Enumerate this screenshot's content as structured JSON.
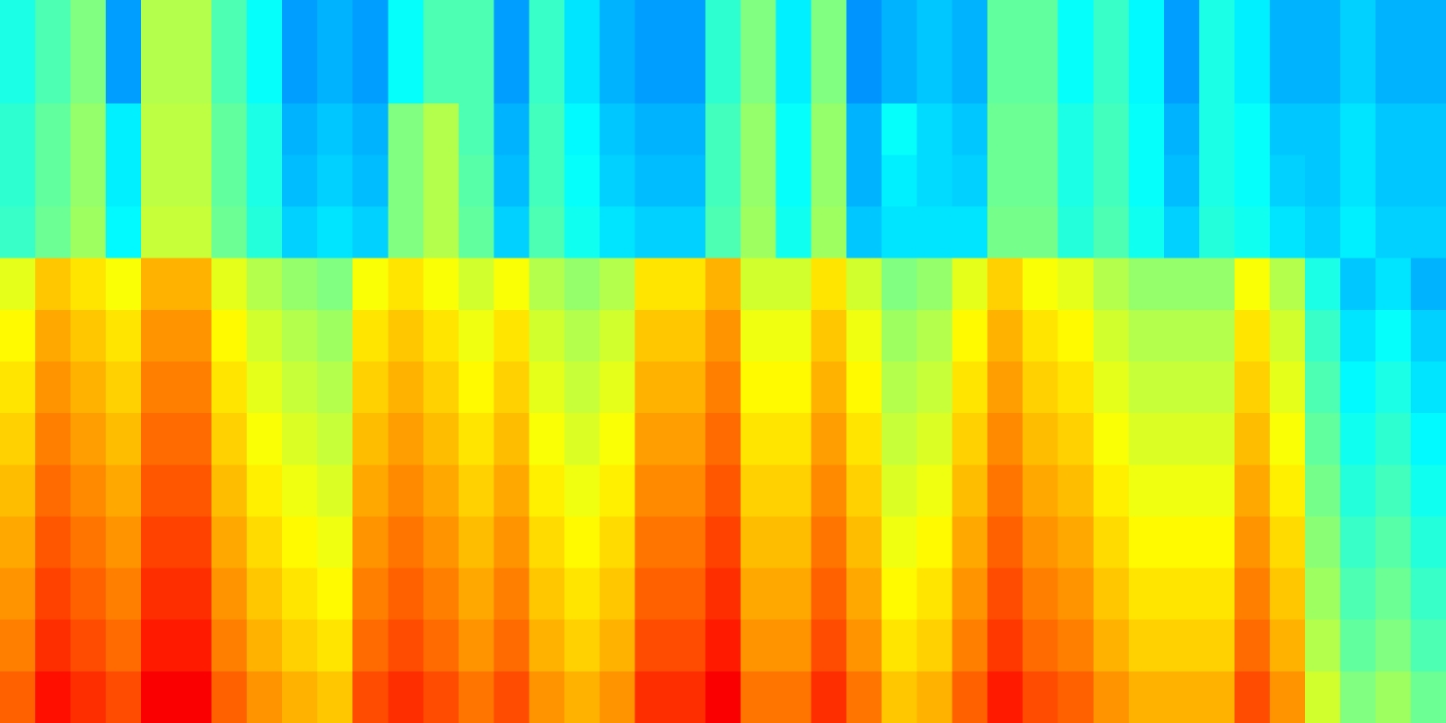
{
  "chart_data": {
    "type": "heatmap",
    "colormap": "jet",
    "clim": [
      0,
      1
    ],
    "values": [
      [
        0.4,
        0.45,
        0.5,
        0.28,
        0.55,
        0.55,
        0.45,
        0.38,
        0.28,
        0.3,
        0.28,
        0.38,
        0.45,
        0.45,
        0.28,
        0.43,
        0.35,
        0.3,
        0.28,
        0.28,
        0.42,
        0.5,
        0.36,
        0.5,
        0.27,
        0.3,
        0.32,
        0.3,
        0.47,
        0.47,
        0.38,
        0.43,
        0.37,
        0.28,
        0.4,
        0.36,
        0.3,
        0.3,
        0.33,
        0.3,
        0.3
      ],
      [
        0.4,
        0.45,
        0.5,
        0.28,
        0.55,
        0.55,
        0.45,
        0.38,
        0.28,
        0.3,
        0.28,
        0.38,
        0.45,
        0.45,
        0.28,
        0.43,
        0.35,
        0.3,
        0.28,
        0.28,
        0.42,
        0.5,
        0.36,
        0.5,
        0.27,
        0.3,
        0.32,
        0.3,
        0.47,
        0.47,
        0.38,
        0.43,
        0.37,
        0.28,
        0.4,
        0.36,
        0.3,
        0.3,
        0.33,
        0.3,
        0.3
      ],
      [
        0.42,
        0.47,
        0.52,
        0.36,
        0.56,
        0.56,
        0.47,
        0.4,
        0.3,
        0.32,
        0.3,
        0.5,
        0.55,
        0.45,
        0.3,
        0.44,
        0.37,
        0.32,
        0.3,
        0.3,
        0.44,
        0.52,
        0.38,
        0.52,
        0.3,
        0.38,
        0.34,
        0.32,
        0.48,
        0.48,
        0.4,
        0.44,
        0.38,
        0.3,
        0.4,
        0.38,
        0.32,
        0.32,
        0.35,
        0.32,
        0.32
      ],
      [
        0.42,
        0.47,
        0.52,
        0.36,
        0.56,
        0.56,
        0.47,
        0.4,
        0.31,
        0.33,
        0.31,
        0.5,
        0.55,
        0.46,
        0.31,
        0.44,
        0.38,
        0.33,
        0.31,
        0.31,
        0.44,
        0.52,
        0.38,
        0.52,
        0.3,
        0.36,
        0.34,
        0.33,
        0.48,
        0.48,
        0.4,
        0.44,
        0.38,
        0.31,
        0.4,
        0.38,
        0.33,
        0.32,
        0.35,
        0.32,
        0.32
      ],
      [
        0.43,
        0.48,
        0.53,
        0.37,
        0.57,
        0.57,
        0.48,
        0.41,
        0.33,
        0.35,
        0.33,
        0.5,
        0.55,
        0.47,
        0.33,
        0.45,
        0.39,
        0.35,
        0.33,
        0.33,
        0.45,
        0.53,
        0.39,
        0.53,
        0.32,
        0.35,
        0.35,
        0.35,
        0.49,
        0.49,
        0.41,
        0.45,
        0.39,
        0.33,
        0.41,
        0.39,
        0.35,
        0.33,
        0.36,
        0.33,
        0.33
      ],
      [
        0.6,
        0.68,
        0.65,
        0.62,
        0.7,
        0.7,
        0.6,
        0.55,
        0.52,
        0.5,
        0.62,
        0.65,
        0.62,
        0.58,
        0.62,
        0.55,
        0.52,
        0.55,
        0.65,
        0.65,
        0.7,
        0.58,
        0.58,
        0.65,
        0.58,
        0.5,
        0.52,
        0.6,
        0.67,
        0.62,
        0.6,
        0.55,
        0.52,
        0.52,
        0.52,
        0.62,
        0.55,
        0.4,
        0.32,
        0.35,
        0.3
      ],
      [
        0.63,
        0.71,
        0.68,
        0.65,
        0.73,
        0.73,
        0.63,
        0.58,
        0.55,
        0.53,
        0.65,
        0.68,
        0.65,
        0.61,
        0.65,
        0.58,
        0.55,
        0.58,
        0.68,
        0.68,
        0.73,
        0.61,
        0.61,
        0.68,
        0.61,
        0.53,
        0.55,
        0.63,
        0.7,
        0.65,
        0.63,
        0.58,
        0.55,
        0.55,
        0.55,
        0.65,
        0.58,
        0.43,
        0.35,
        0.38,
        0.33
      ],
      [
        0.65,
        0.73,
        0.7,
        0.67,
        0.75,
        0.75,
        0.65,
        0.6,
        0.57,
        0.55,
        0.67,
        0.7,
        0.67,
        0.63,
        0.67,
        0.6,
        0.57,
        0.6,
        0.7,
        0.7,
        0.75,
        0.63,
        0.63,
        0.7,
        0.63,
        0.55,
        0.57,
        0.65,
        0.72,
        0.67,
        0.65,
        0.6,
        0.57,
        0.57,
        0.57,
        0.67,
        0.6,
        0.45,
        0.37,
        0.4,
        0.35
      ],
      [
        0.67,
        0.75,
        0.72,
        0.69,
        0.77,
        0.77,
        0.67,
        0.62,
        0.59,
        0.57,
        0.69,
        0.72,
        0.69,
        0.65,
        0.69,
        0.62,
        0.59,
        0.62,
        0.72,
        0.72,
        0.77,
        0.65,
        0.65,
        0.72,
        0.65,
        0.57,
        0.59,
        0.67,
        0.74,
        0.69,
        0.67,
        0.62,
        0.59,
        0.59,
        0.59,
        0.69,
        0.62,
        0.47,
        0.39,
        0.42,
        0.37
      ],
      [
        0.69,
        0.77,
        0.74,
        0.71,
        0.79,
        0.79,
        0.69,
        0.64,
        0.61,
        0.59,
        0.71,
        0.74,
        0.71,
        0.67,
        0.71,
        0.64,
        0.61,
        0.64,
        0.74,
        0.74,
        0.79,
        0.67,
        0.67,
        0.74,
        0.67,
        0.59,
        0.61,
        0.69,
        0.76,
        0.71,
        0.69,
        0.64,
        0.61,
        0.61,
        0.61,
        0.71,
        0.64,
        0.49,
        0.41,
        0.44,
        0.39
      ],
      [
        0.71,
        0.79,
        0.76,
        0.73,
        0.81,
        0.81,
        0.71,
        0.66,
        0.63,
        0.61,
        0.73,
        0.76,
        0.73,
        0.69,
        0.73,
        0.66,
        0.63,
        0.66,
        0.76,
        0.76,
        0.81,
        0.69,
        0.69,
        0.76,
        0.69,
        0.61,
        0.63,
        0.71,
        0.78,
        0.73,
        0.71,
        0.66,
        0.63,
        0.63,
        0.63,
        0.73,
        0.66,
        0.51,
        0.43,
        0.46,
        0.41
      ],
      [
        0.73,
        0.81,
        0.78,
        0.75,
        0.83,
        0.83,
        0.73,
        0.68,
        0.65,
        0.63,
        0.75,
        0.78,
        0.75,
        0.71,
        0.75,
        0.68,
        0.65,
        0.68,
        0.78,
        0.78,
        0.83,
        0.71,
        0.71,
        0.78,
        0.71,
        0.63,
        0.65,
        0.73,
        0.8,
        0.75,
        0.73,
        0.68,
        0.65,
        0.65,
        0.65,
        0.75,
        0.68,
        0.53,
        0.45,
        0.48,
        0.43
      ],
      [
        0.75,
        0.83,
        0.8,
        0.77,
        0.85,
        0.85,
        0.75,
        0.7,
        0.67,
        0.65,
        0.77,
        0.8,
        0.77,
        0.73,
        0.77,
        0.7,
        0.67,
        0.7,
        0.8,
        0.8,
        0.85,
        0.73,
        0.73,
        0.8,
        0.73,
        0.65,
        0.67,
        0.75,
        0.82,
        0.77,
        0.75,
        0.7,
        0.67,
        0.67,
        0.67,
        0.77,
        0.7,
        0.55,
        0.47,
        0.5,
        0.45
      ],
      [
        0.78,
        0.86,
        0.83,
        0.8,
        0.88,
        0.88,
        0.78,
        0.73,
        0.7,
        0.68,
        0.8,
        0.83,
        0.8,
        0.76,
        0.8,
        0.73,
        0.7,
        0.73,
        0.83,
        0.83,
        0.88,
        0.76,
        0.76,
        0.83,
        0.76,
        0.68,
        0.7,
        0.78,
        0.85,
        0.8,
        0.78,
        0.73,
        0.7,
        0.7,
        0.7,
        0.8,
        0.73,
        0.58,
        0.5,
        0.53,
        0.48
      ]
    ]
  }
}
